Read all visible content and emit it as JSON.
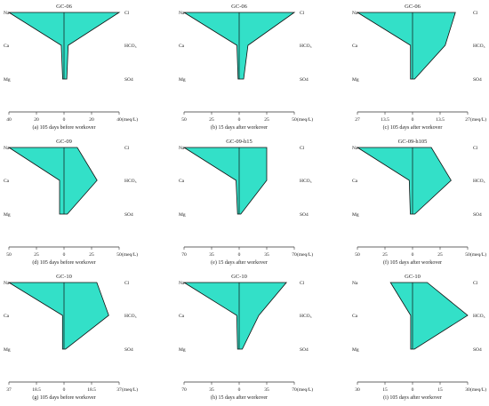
{
  "colors": {
    "fill": "#33e0c8",
    "stroke": "#111111",
    "axis": "#333333"
  },
  "unit_label": "(meq/L)",
  "ion_labels": {
    "left": [
      "Na",
      "Ca",
      "Mg"
    ],
    "right": [
      "Cl",
      "HCO₃",
      "SO4"
    ]
  },
  "chart_data": [
    {
      "type": "stiff",
      "title": "GC-06",
      "caption": "(a) 105 days before workover",
      "xmax": 40,
      "ticks": [
        "40",
        "20",
        "0",
        "20",
        "40"
      ],
      "left": [
        -40,
        -2,
        -1
      ],
      "right": [
        40,
        3,
        2
      ]
    },
    {
      "type": "stiff",
      "title": "GC-06",
      "caption": "(b) 15 days after workover",
      "xmax": 50,
      "ticks": [
        "50",
        "25",
        "0",
        "25",
        "50"
      ],
      "left": [
        -50,
        -2,
        -1
      ],
      "right": [
        50,
        8,
        4
      ]
    },
    {
      "type": "stiff",
      "title": "GC-06",
      "caption": "(c) 105 days after workover",
      "xmax": 27,
      "ticks": [
        "27",
        "13.5",
        "0",
        "13.5",
        "27"
      ],
      "left": [
        -27,
        -1,
        -1
      ],
      "right": [
        21,
        16,
        1
      ]
    },
    {
      "type": "stiff",
      "title": "GC-09",
      "caption": "(d) 105 days before workover",
      "xmax": 50,
      "ticks": [
        "50",
        "25",
        "0",
        "25",
        "50"
      ],
      "left": [
        -50,
        -4,
        -4
      ],
      "right": [
        12,
        30,
        3
      ]
    },
    {
      "type": "stiff",
      "title": "GC-09-h15",
      "caption": "(e) 15 days after workover",
      "xmax": 70,
      "ticks": [
        "70",
        "35",
        "0",
        "35",
        "70"
      ],
      "left": [
        -70,
        -4,
        -2
      ],
      "right": [
        35,
        35,
        2
      ]
    },
    {
      "type": "stiff",
      "title": "GC-09-h105",
      "caption": "(f) 105 days after workover",
      "xmax": 50,
      "ticks": [
        "50",
        "25",
        "0",
        "25",
        "50"
      ],
      "left": [
        -50,
        -3,
        -2
      ],
      "right": [
        17,
        35,
        2
      ]
    },
    {
      "type": "stiff",
      "title": "GC-10",
      "caption": "(g) 105 days before workover",
      "xmax": 37,
      "ticks": [
        "37",
        "18.5",
        "0",
        "18.5",
        "37"
      ],
      "left": [
        -37,
        -1,
        -1
      ],
      "right": [
        22,
        30,
        1
      ]
    },
    {
      "type": "stiff",
      "title": "GC-10",
      "caption": "(h) 15 days after workover",
      "xmax": 70,
      "ticks": [
        "70",
        "35",
        "0",
        "35",
        "70"
      ],
      "left": [
        -70,
        -3,
        -2
      ],
      "right": [
        60,
        25,
        4
      ]
    },
    {
      "type": "stiff",
      "title": "GC-10",
      "caption": "(i) 105 days after workover",
      "xmax": 30,
      "ticks": [
        "30",
        "15",
        "0",
        "15",
        "30"
      ],
      "left": [
        -12,
        -1,
        -1
      ],
      "right": [
        8,
        30,
        1
      ]
    }
  ]
}
